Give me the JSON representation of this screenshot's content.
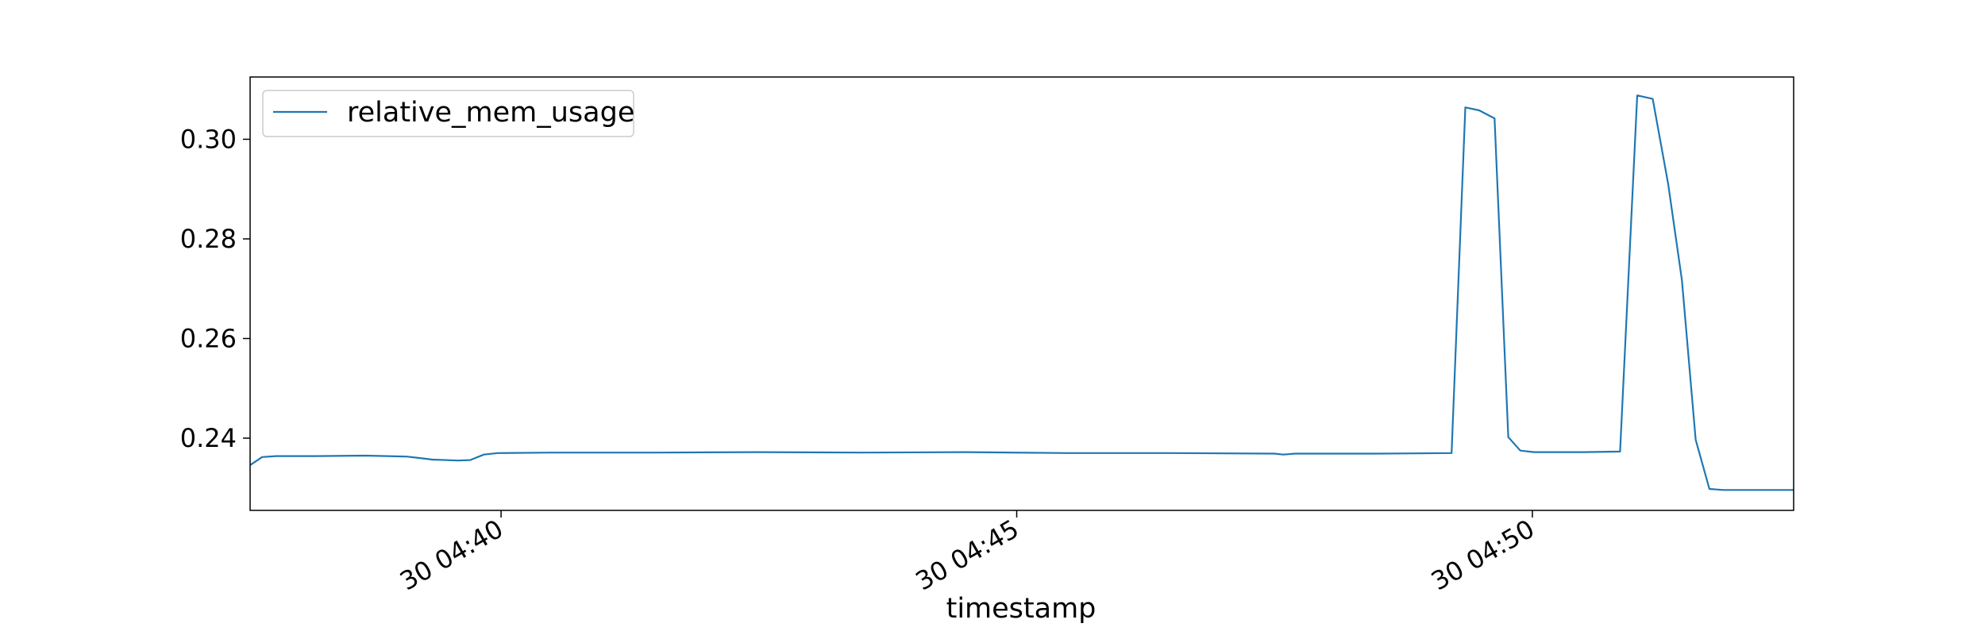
{
  "chart_data": {
    "type": "line",
    "title": "",
    "xlabel": "timestamp",
    "ylabel": "",
    "grid": false,
    "legend_position": "top-left",
    "line_color": "#1f77b4",
    "xlim": [
      "2000-01-30T04:37:34",
      "2000-01-30T04:52:32"
    ],
    "ylim": [
      0.2255,
      0.3125
    ],
    "x_ticks": [
      {
        "value": "2000-01-30T04:40:00",
        "label": "30 04:40"
      },
      {
        "value": "2000-01-30T04:45:00",
        "label": "30 04:45"
      },
      {
        "value": "2000-01-30T04:50:00",
        "label": "30 04:50"
      }
    ],
    "y_ticks": [
      {
        "value": 0.24,
        "label": "0.24"
      },
      {
        "value": 0.26,
        "label": "0.26"
      },
      {
        "value": 0.28,
        "label": "0.28"
      },
      {
        "value": 0.3,
        "label": "0.30"
      }
    ],
    "series": [
      {
        "name": "relative_mem_usage",
        "points": [
          [
            "2000-01-30T04:37:34",
            0.2346
          ],
          [
            "2000-01-30T04:37:41",
            0.2362
          ],
          [
            "2000-01-30T04:37:49",
            0.2364
          ],
          [
            "2000-01-30T04:38:12",
            0.2364
          ],
          [
            "2000-01-30T04:38:41",
            0.2365
          ],
          [
            "2000-01-30T04:39:05",
            0.2363
          ],
          [
            "2000-01-30T04:39:13",
            0.236
          ],
          [
            "2000-01-30T04:39:20",
            0.2357
          ],
          [
            "2000-01-30T04:39:35",
            0.2355
          ],
          [
            "2000-01-30T04:39:42",
            0.2356
          ],
          [
            "2000-01-30T04:39:50",
            0.2367
          ],
          [
            "2000-01-30T04:39:58",
            0.237
          ],
          [
            "2000-01-30T04:40:30",
            0.2371
          ],
          [
            "2000-01-30T04:41:30",
            0.2371
          ],
          [
            "2000-01-30T04:42:30",
            0.2372
          ],
          [
            "2000-01-30T04:43:30",
            0.2371
          ],
          [
            "2000-01-30T04:44:30",
            0.2372
          ],
          [
            "2000-01-30T04:45:30",
            0.237
          ],
          [
            "2000-01-30T04:46:30",
            0.237
          ],
          [
            "2000-01-30T04:47:30",
            0.2369
          ],
          [
            "2000-01-30T04:47:35",
            0.2367
          ],
          [
            "2000-01-30T04:47:42",
            0.2369
          ],
          [
            "2000-01-30T04:48:30",
            0.2369
          ],
          [
            "2000-01-30T04:49:13",
            0.237
          ],
          [
            "2000-01-30T04:49:21",
            0.3064
          ],
          [
            "2000-01-30T04:49:29",
            0.3058
          ],
          [
            "2000-01-30T04:49:38",
            0.3042
          ],
          [
            "2000-01-30T04:49:46",
            0.2402
          ],
          [
            "2000-01-30T04:49:53",
            0.2375
          ],
          [
            "2000-01-30T04:50:01",
            0.2372
          ],
          [
            "2000-01-30T04:50:30",
            0.2372
          ],
          [
            "2000-01-30T04:50:51",
            0.2373
          ],
          [
            "2000-01-30T04:51:01",
            0.3088
          ],
          [
            "2000-01-30T04:51:10",
            0.3081
          ],
          [
            "2000-01-30T04:51:19",
            0.291
          ],
          [
            "2000-01-30T04:51:27",
            0.2717
          ],
          [
            "2000-01-30T04:51:35",
            0.2397
          ],
          [
            "2000-01-30T04:51:43",
            0.2298
          ],
          [
            "2000-01-30T04:51:51",
            0.2296
          ],
          [
            "2000-01-30T04:52:32",
            0.2296
          ]
        ]
      }
    ]
  }
}
